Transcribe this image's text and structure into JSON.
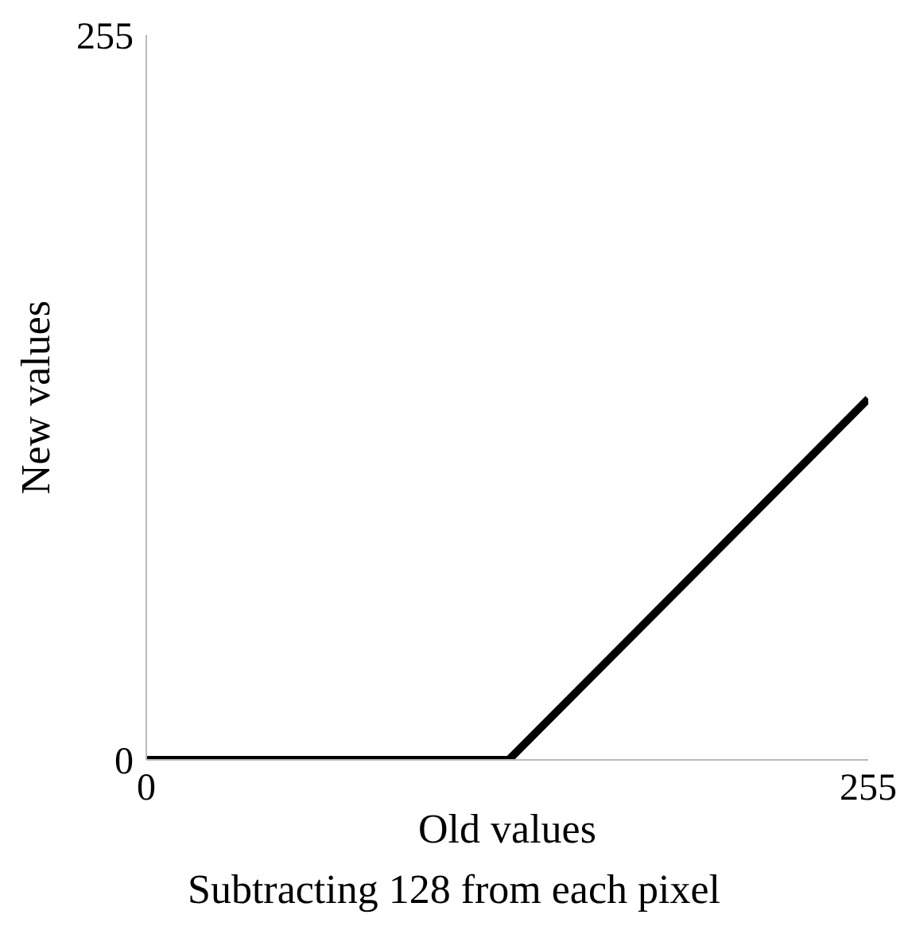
{
  "chart_data": {
    "type": "line",
    "title": "Subtracting 128 from each pixel",
    "xlabel": "Old values",
    "ylabel": "New values",
    "x": [
      0,
      128,
      255
    ],
    "series": [
      {
        "color": "#000000",
        "values": [
          0,
          0,
          127
        ]
      }
    ],
    "xlim": [
      0,
      255
    ],
    "xticks": [
      0,
      255
    ],
    "ylim": [
      0,
      255
    ],
    "yticks": [
      0,
      255
    ]
  }
}
